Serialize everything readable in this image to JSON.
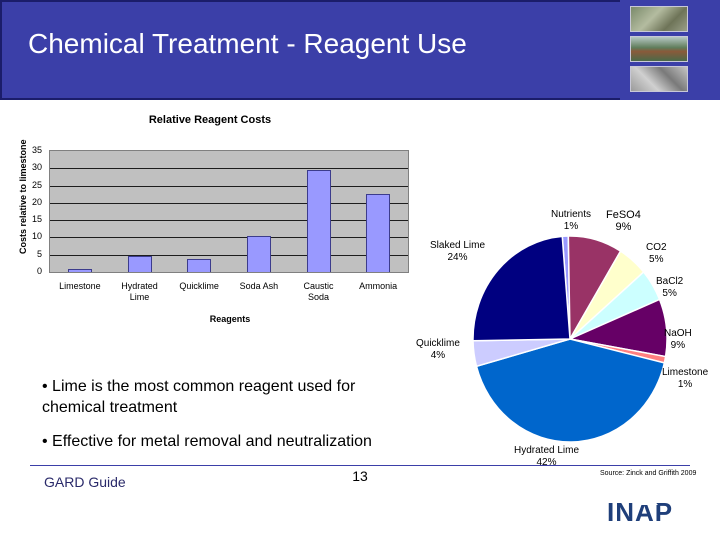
{
  "header": {
    "title": "Chemical Treatment - Reagent Use",
    "photos": [
      "site-photo-icon",
      "treatment-plant-photo-icon",
      "sludge-photo-icon"
    ]
  },
  "chart_data": [
    {
      "type": "bar",
      "title": "Relative Reagent Costs",
      "xlabel": "Reagents",
      "ylabel": "Costs relative to limestone",
      "ylim": [
        0,
        35
      ],
      "yticks": [
        "0",
        "5",
        "10",
        "15",
        "20",
        "25",
        "30",
        "35"
      ],
      "categories": [
        "Limestone",
        "Hydrated\nLime",
        "Quicklime",
        "Soda Ash",
        "Caustic\nSoda",
        "Ammonia"
      ],
      "values": [
        1,
        4.5,
        3.7,
        10.5,
        29.5,
        22.5
      ],
      "bar_color": "#9999ff",
      "plot_bg": "#c0c0c0",
      "grid": true
    },
    {
      "type": "pie",
      "source": "Source: Zinck and Griffith 2009",
      "slices": [
        {
          "name": "Nutrients",
          "pct": "1%",
          "value": 1,
          "color": "#9999ff"
        },
        {
          "name": "FeSO4",
          "pct": "9%",
          "value": 9,
          "color": "#993366"
        },
        {
          "name": "CO2",
          "pct": "5%",
          "value": 5,
          "color": "#ffffcc"
        },
        {
          "name": "BaCl2",
          "pct": "5%",
          "value": 5,
          "color": "#ccffff"
        },
        {
          "name": "NaOH",
          "pct": "9%",
          "value": 9,
          "color": "#660066"
        },
        {
          "name": "Limestone",
          "pct": "1%",
          "value": 1,
          "color": "#ff8080"
        },
        {
          "name": "Hydrated Lime",
          "pct": "42%",
          "value": 42,
          "color": "#0066cc"
        },
        {
          "name": "Quicklime",
          "pct": "4%",
          "value": 4,
          "color": "#ccccff"
        },
        {
          "name": "Slaked Lime",
          "pct": "24%",
          "value": 24,
          "color": "#000080"
        }
      ]
    }
  ],
  "bullets": [
    "• Lime is the most common reagent used for chemical treatment",
    "• Effective for metal removal and neutralization"
  ],
  "footer": {
    "left_text": "GARD Guide",
    "page_number": "13",
    "logo_text": "INAP"
  }
}
